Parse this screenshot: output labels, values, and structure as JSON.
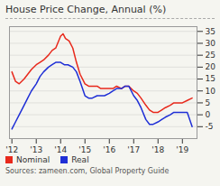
{
  "chart_data": {
    "type": "line",
    "title": "House Price Change, Annual (%)",
    "source": "Sources: zameen.com, Global Property Guide",
    "xlim": [
      2011.9,
      2019.6
    ],
    "ylim": [
      -10,
      37
    ],
    "yticks": [
      -5,
      0,
      5,
      10,
      15,
      20,
      25,
      30,
      35
    ],
    "xticks": [
      {
        "value": 2012,
        "label": "'12"
      },
      {
        "value": 2013,
        "label": "'13"
      },
      {
        "value": 2014,
        "label": "'14"
      },
      {
        "value": 2015,
        "label": "'15"
      },
      {
        "value": 2016,
        "label": "'16"
      },
      {
        "value": 2017,
        "label": "'17"
      },
      {
        "value": 2018,
        "label": "'18"
      },
      {
        "value": 2019,
        "label": "'19"
      }
    ],
    "grid": true,
    "legend": "lower left",
    "series": [
      {
        "name": "Nominal",
        "color": "#e8291c",
        "x": [
          2012.0,
          2012.15,
          2012.3,
          2012.5,
          2012.65,
          2012.8,
          2013.0,
          2013.15,
          2013.3,
          2013.5,
          2013.65,
          2013.8,
          2014.0,
          2014.1,
          2014.2,
          2014.35,
          2014.5,
          2014.65,
          2014.8,
          2015.0,
          2015.15,
          2015.3,
          2015.5,
          2015.65,
          2015.8,
          2016.0,
          2016.15,
          2016.3,
          2016.5,
          2016.65,
          2016.8,
          2017.0,
          2017.15,
          2017.3,
          2017.5,
          2017.65,
          2017.8,
          2018.0,
          2018.15,
          2018.3,
          2018.5,
          2018.65,
          2018.8,
          2019.0,
          2019.2,
          2019.4
        ],
        "values": [
          18,
          14,
          13,
          15,
          17,
          19,
          21,
          22,
          23,
          25,
          27,
          28,
          33,
          34,
          32,
          31,
          28,
          22,
          17,
          13,
          12,
          12,
          12,
          11,
          11,
          11,
          11,
          12,
          11,
          12,
          12,
          10,
          9,
          7,
          4,
          2,
          1,
          1,
          2,
          3,
          4,
          5,
          5,
          5,
          6,
          7
        ]
      },
      {
        "name": "Real",
        "color": "#1f2fd6",
        "x": [
          2012.0,
          2012.15,
          2012.3,
          2012.5,
          2012.65,
          2012.8,
          2013.0,
          2013.15,
          2013.3,
          2013.5,
          2013.65,
          2013.8,
          2014.0,
          2014.15,
          2014.3,
          2014.5,
          2014.65,
          2014.8,
          2015.0,
          2015.15,
          2015.3,
          2015.5,
          2015.65,
          2015.8,
          2016.0,
          2016.15,
          2016.3,
          2016.5,
          2016.65,
          2016.8,
          2017.0,
          2017.15,
          2017.3,
          2017.5,
          2017.65,
          2017.8,
          2018.0,
          2018.15,
          2018.3,
          2018.5,
          2018.65,
          2018.8,
          2019.0,
          2019.2,
          2019.4
        ],
        "values": [
          -6,
          -3,
          0,
          4,
          7,
          10,
          13,
          16,
          18,
          20,
          21,
          22,
          22,
          21,
          21,
          20,
          18,
          14,
          8,
          7,
          7,
          8,
          8,
          8,
          9,
          10,
          11,
          11,
          12,
          12,
          8,
          6,
          3,
          -2,
          -4,
          -4,
          -3,
          -2,
          -1,
          0,
          1,
          1,
          1,
          1,
          -5
        ]
      }
    ]
  }
}
